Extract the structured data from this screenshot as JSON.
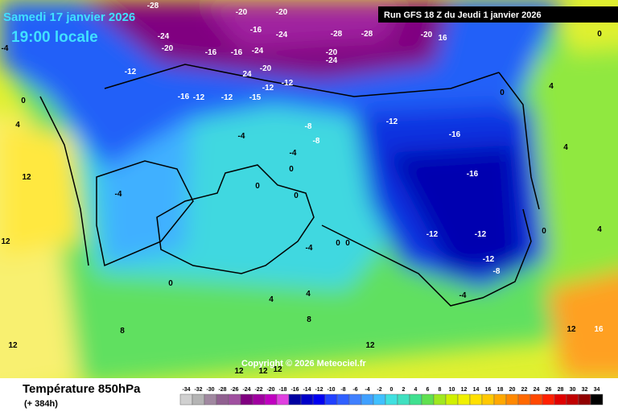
{
  "header": {
    "date": "Samedi 17 janvier 2026",
    "time": "19:00 locale",
    "run": "Run GFS 18 Z du Jeudi 1 janvier 2026",
    "copyright": "Copyright © 2026 Meteociel.fr"
  },
  "legend": {
    "title": "Température 850hPa",
    "lead": "(+ 384h)",
    "ticks": [
      -34,
      -32,
      -30,
      -28,
      -26,
      -24,
      -22,
      -20,
      -18,
      -16,
      -14,
      -12,
      -10,
      -8,
      -6,
      -4,
      -2,
      0,
      2,
      4,
      6,
      8,
      10,
      12,
      14,
      16,
      18,
      20,
      22,
      24,
      26,
      28,
      30,
      32,
      34
    ],
    "colors": [
      "#d0d0d0",
      "#b4b4b4",
      "#a088a0",
      "#906090",
      "#a050a0",
      "#800080",
      "#a000a0",
      "#c000c0",
      "#e040e0",
      "#0000a0",
      "#0000c8",
      "#0000f0",
      "#2040ff",
      "#3060ff",
      "#4080ff",
      "#40a0ff",
      "#40c0ff",
      "#40e0e0",
      "#40e0c0",
      "#40e090",
      "#60e050",
      "#a0e820",
      "#d0f000",
      "#f0f000",
      "#ffe000",
      "#ffc800",
      "#ffa800",
      "#ff8800",
      "#ff6800",
      "#ff4800",
      "#ff2000",
      "#e00000",
      "#c00000",
      "#900000",
      "#000000"
    ]
  },
  "contour_labels": [
    -28,
    -24,
    -20,
    -16,
    -16,
    -24,
    -20,
    24,
    -12,
    -12,
    -16,
    -12,
    -12,
    -15,
    -12,
    -8,
    -8,
    -12,
    -16,
    -16,
    -12,
    -12,
    -12,
    -8,
    -4,
    -4,
    -4,
    -4,
    0,
    0,
    0,
    0,
    0,
    0,
    -4,
    4,
    4,
    8,
    8,
    12,
    12,
    12,
    12,
    12,
    12,
    12,
    12,
    16,
    4,
    4,
    0,
    -4,
    0,
    -20,
    -24,
    -28,
    -28,
    -20,
    16,
    -20,
    -16,
    -20,
    -24,
    0,
    4,
    0,
    4
  ]
}
